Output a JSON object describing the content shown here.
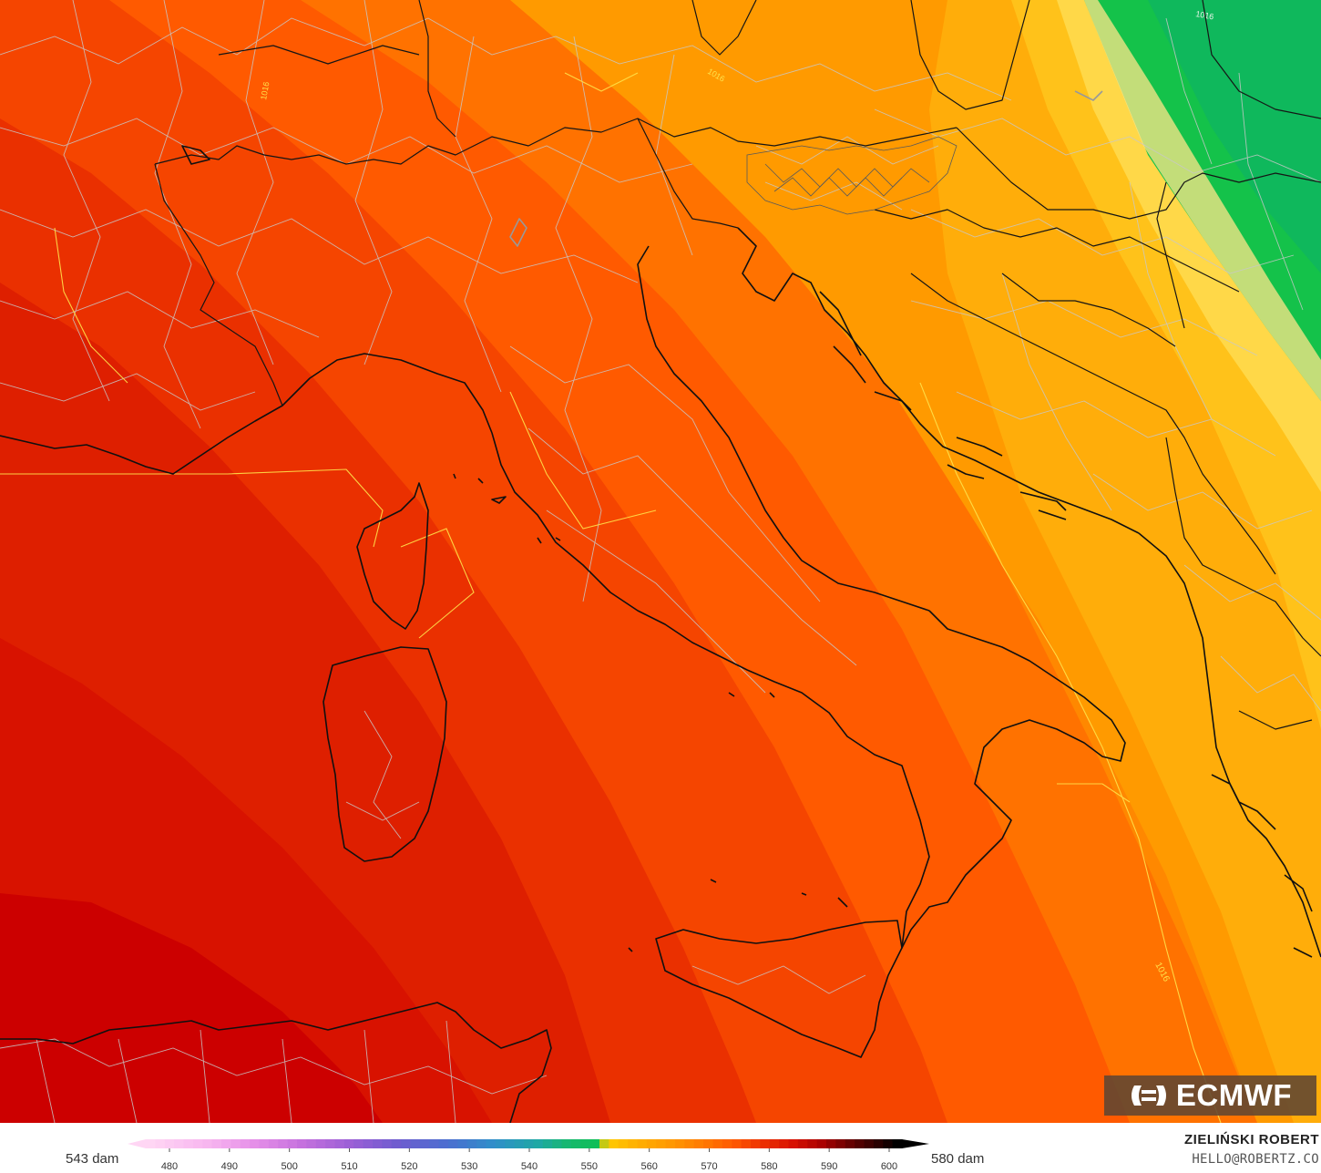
{
  "map": {
    "isobar_label": "1016",
    "fill_colors": [
      "#cc0000",
      "#e01f00",
      "#f04a00",
      "#ff6a00",
      "#ff8800",
      "#ffa500",
      "#ffc21a",
      "#ffd740",
      "#fde68a",
      "#14c24a",
      "#09b858"
    ]
  },
  "brand": {
    "logo_text": "ECMWF"
  },
  "legend": {
    "min_label": "543 dam",
    "max_label": "580 dam",
    "ticks": [
      "480",
      "490",
      "500",
      "510",
      "520",
      "530",
      "540",
      "550",
      "560",
      "570",
      "580",
      "590",
      "600"
    ]
  },
  "credit": {
    "name": "ZIELIŃSKI ROBERT",
    "email": "HELLO@ROBERTZ.CO"
  }
}
